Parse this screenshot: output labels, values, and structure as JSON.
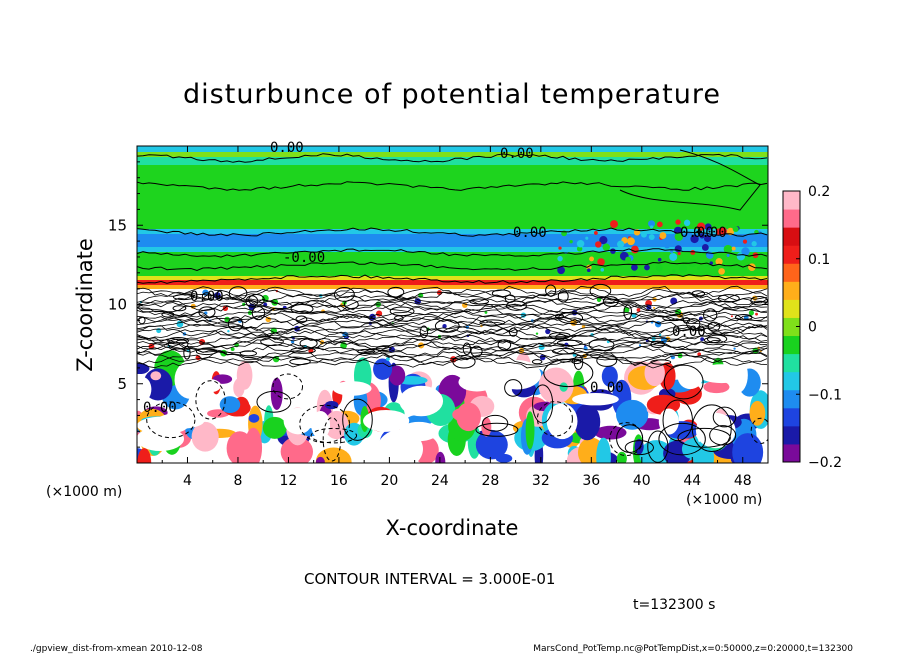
{
  "chart_data": {
    "type": "heatmap",
    "title": "disturbunce of potential temperature",
    "xlabel": "X-coordinate",
    "ylabel": "Z-coordinate",
    "x_unit_left": "(×1000 m)",
    "x_unit_right": "(×1000 m)",
    "xlim": [
      0,
      50
    ],
    "ylim": [
      0,
      20
    ],
    "x_ticks": [
      "4",
      "8",
      "12",
      "16",
      "20",
      "24",
      "28",
      "32",
      "36",
      "40",
      "44",
      "48"
    ],
    "y_ticks": [
      "5",
      "10",
      "15"
    ],
    "colorbar": {
      "range": [
        -0.2,
        0.2
      ],
      "tick_labels": [
        "0.2",
        "0.1",
        "0",
        "−0.1",
        "−0.2"
      ],
      "colors": [
        "#7a0a9a",
        "#1a1aa8",
        "#1e44e0",
        "#1e8cf0",
        "#22c8e6",
        "#20e0a0",
        "#19d21f",
        "#7fe01a",
        "#e0e21a",
        "#ffae1a",
        "#ff641a",
        "#ef1e1a",
        "#d80e12",
        "#ff6a8a",
        "#ffb8c8"
      ]
    },
    "contour_labels": [
      "0.00",
      "0.00",
      "0.00",
      "-0.00",
      "0.00",
      "0.00",
      "0.00",
      "0.00",
      "0.00",
      "0.00"
    ],
    "contour_interval": "CONTOUR INTERVAL = 3.000E-01",
    "time": "t=132300 s",
    "footer_left": "./gpview_dist-from-xmean  2010-12-08",
    "footer_right": "MarsCond_PotTemp.nc@PotTempDist,x=0:50000,z=0:20000,t=132300"
  }
}
